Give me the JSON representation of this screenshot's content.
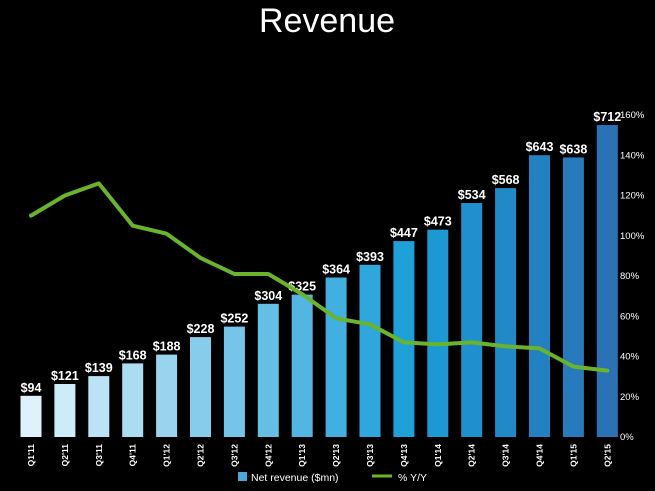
{
  "chart_data": {
    "type": "bar",
    "title": "Revenue",
    "categories": [
      "Q1'11",
      "Q2'11",
      "Q3'11",
      "Q4'11",
      "Q1'12",
      "Q2'12",
      "Q3'12",
      "Q4'12",
      "Q1'13",
      "Q2'13",
      "Q3'13",
      "Q4'13",
      "Q1'14",
      "Q2'14",
      "Q3'14",
      "Q4'14",
      "Q1'15",
      "Q2'15"
    ],
    "series": [
      {
        "name": "Net revenue ($mn)",
        "type": "bar",
        "axis": "left",
        "values": [
          94,
          121,
          139,
          168,
          188,
          228,
          252,
          304,
          325,
          364,
          393,
          447,
          473,
          534,
          568,
          643,
          638,
          712
        ],
        "labels": [
          "$94",
          "$121",
          "$139",
          "$168",
          "$188",
          "$228",
          "$252",
          "$304",
          "$325",
          "$364",
          "$393",
          "$447",
          "$473",
          "$534",
          "$568",
          "$643",
          "$638",
          "$712"
        ]
      },
      {
        "name": "% Y/Y",
        "type": "line",
        "axis": "right",
        "values": [
          110,
          120,
          126,
          105,
          101,
          89,
          81,
          81,
          71,
          59,
          56,
          47,
          46,
          47,
          45,
          44,
          35,
          33
        ]
      }
    ],
    "left_axis": {
      "min": 0,
      "max": 712,
      "visible": false
    },
    "right_axis": {
      "min": 0,
      "max": 160,
      "visible": true,
      "ticks": [
        0,
        20,
        40,
        60,
        80,
        100,
        120,
        140,
        160
      ],
      "tick_labels": [
        "0%",
        "20%",
        "40%",
        "60%",
        "80%",
        "100%",
        "120%",
        "140%",
        "160%"
      ]
    },
    "legend": {
      "position": "bottom-center",
      "items": [
        "Net revenue ($mn)",
        "% Y/Y"
      ]
    },
    "colors": {
      "background": "#000000",
      "bar_light": "#dff2fb",
      "bar_mid": "#1a9ed8",
      "bar_dark": "#2a72b5",
      "line": "#6ab42d",
      "text": "#ffffff"
    },
    "grid": false
  }
}
